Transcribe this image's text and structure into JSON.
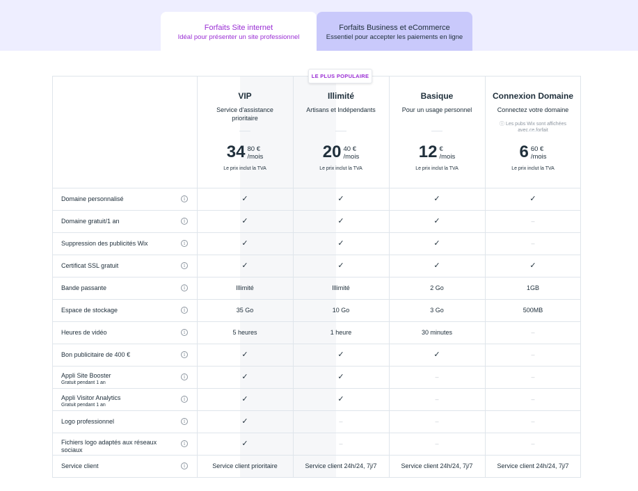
{
  "tabs": [
    {
      "title": "Forfaits Site internet",
      "subtitle": "Idéal pour présenter un site professionnel",
      "active": true
    },
    {
      "title": "Forfaits Business et eCommerce",
      "subtitle": "Essentiel pour accepter les paiements en ligne",
      "active": false
    }
  ],
  "badge": "LE PLUS POPULAIRE",
  "colors": {
    "accent": "#9a2ed4",
    "tab_inactive": "#c9c9fb",
    "band": "#eeeeff"
  },
  "plans": [
    {
      "name": "VIP",
      "description": "Service d'assistance prioritaire",
      "note": "",
      "price_main": "34",
      "price_cents": "80 €",
      "period": "/mois",
      "tax_note": "Le prix inclut la TVA"
    },
    {
      "name": "Illimité",
      "description": "Artisans et Indépendants",
      "note": "",
      "price_main": "20",
      "price_cents": "40 €",
      "period": "/mois",
      "tax_note": "Le prix inclut la TVA"
    },
    {
      "name": "Basique",
      "description": "Pour un usage personnel",
      "note": "",
      "price_main": "12",
      "price_cents": "€",
      "period": "/mois",
      "tax_note": "Le prix inclut la TVA"
    },
    {
      "name": "Connexion Domaine",
      "description": "Connectez votre domaine",
      "note": "ⓘ Les pubs Wix sont affichées avec ce forfait",
      "price_main": "6",
      "price_cents": "60 €",
      "period": "/mois",
      "tax_note": "Le prix inclut la TVA"
    }
  ],
  "info_icon": "info-circle-icon",
  "rows": [
    {
      "label": "Domaine personnalisé",
      "sub": "",
      "values": [
        "✓",
        "✓",
        "✓",
        "✓"
      ]
    },
    {
      "label": "Domaine gratuit/1 an",
      "sub": "",
      "values": [
        "✓",
        "✓",
        "✓",
        "–"
      ]
    },
    {
      "label": "Suppression des publicités Wix",
      "sub": "",
      "values": [
        "✓",
        "✓",
        "✓",
        "–"
      ]
    },
    {
      "label": "Certificat SSL gratuit",
      "sub": "",
      "values": [
        "✓",
        "✓",
        "✓",
        "✓"
      ]
    },
    {
      "label": "Bande passante",
      "sub": "",
      "values": [
        "Illimité",
        "Illimité",
        "2 Go",
        "1GB"
      ]
    },
    {
      "label": "Espace de stockage",
      "sub": "",
      "values": [
        "35 Go",
        "10 Go",
        "3 Go",
        "500MB"
      ]
    },
    {
      "label": "Heures de vidéo",
      "sub": "",
      "values": [
        "5 heures",
        "1 heure",
        "30 minutes",
        "–"
      ]
    },
    {
      "label": "Bon publicitaire de 400 €",
      "sub": "",
      "values": [
        "✓",
        "✓",
        "✓",
        "–"
      ]
    },
    {
      "label": "Appli Site Booster",
      "sub": "Gratuit pendant 1 an",
      "values": [
        "✓",
        "✓",
        "–",
        "–"
      ]
    },
    {
      "label": "Appli Visitor Analytics",
      "sub": "Gratuit pendant 1 an",
      "values": [
        "✓",
        "✓",
        "–",
        "–"
      ]
    },
    {
      "label": "Logo professionnel",
      "sub": "",
      "values": [
        "✓",
        "–",
        "–",
        "–"
      ]
    },
    {
      "label": "Fichiers logo adaptés aux réseaux sociaux",
      "sub": "",
      "values": [
        "✓",
        "–",
        "–",
        "–"
      ]
    },
    {
      "label": "Service client",
      "sub": "",
      "values": [
        "Service client prioritaire",
        "Service client 24h/24, 7j/7",
        "Service client 24h/24, 7j/7",
        "Service client 24h/24, 7j/7"
      ]
    }
  ]
}
